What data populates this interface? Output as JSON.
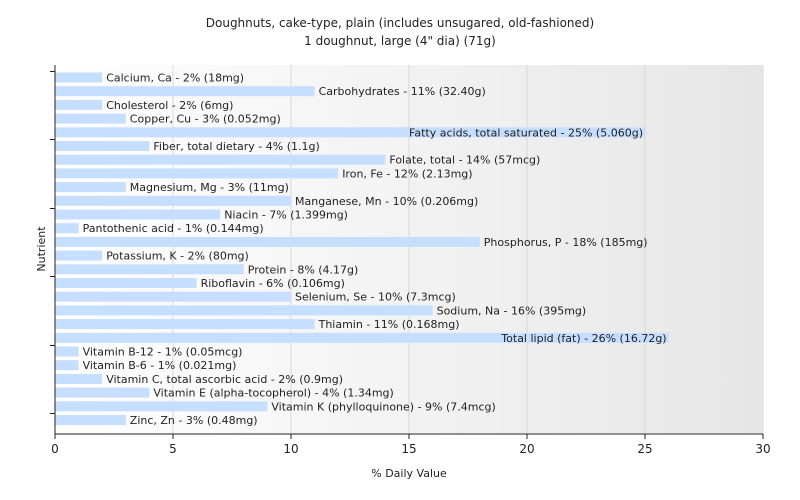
{
  "chart_data": {
    "type": "bar",
    "orientation": "horizontal",
    "title": "Doughnuts, cake-type, plain (includes unsugared, old-fashioned)",
    "subtitle": "1 doughnut, large (4\" dia) (71g)",
    "xlabel": "% Daily Value",
    "ylabel": "Nutrient",
    "xlim": [
      0,
      30
    ],
    "xticks": [
      0,
      5,
      10,
      15,
      20,
      25,
      30
    ],
    "grid": true,
    "bar_color": "#c6deff",
    "categories": [
      "Calcium, Ca",
      "Carbohydrates",
      "Cholesterol",
      "Copper, Cu",
      "Fatty acids, total saturated",
      "Fiber, total dietary",
      "Folate, total",
      "Iron, Fe",
      "Magnesium, Mg",
      "Manganese, Mn",
      "Niacin",
      "Pantothenic acid",
      "Phosphorus, P",
      "Potassium, K",
      "Protein",
      "Riboflavin",
      "Selenium, Se",
      "Sodium, Na",
      "Thiamin",
      "Total lipid (fat)",
      "Vitamin B-12",
      "Vitamin B-6",
      "Vitamin C, total ascorbic acid",
      "Vitamin E (alpha-tocopherol)",
      "Vitamin K (phylloquinone)",
      "Zinc, Zn"
    ],
    "values": [
      2,
      11,
      2,
      3,
      25,
      4,
      14,
      12,
      3,
      10,
      7,
      1,
      18,
      2,
      8,
      6,
      10,
      16,
      11,
      26,
      1,
      1,
      2,
      4,
      9,
      3
    ],
    "labels": [
      "Calcium, Ca - 2% (18mg)",
      "Carbohydrates - 11% (32.40g)",
      "Cholesterol - 2% (6mg)",
      "Copper, Cu - 3% (0.052mg)",
      "Fatty acids, total saturated - 25% (5.060g)",
      "Fiber, total dietary - 4% (1.1g)",
      "Folate, total - 14% (57mcg)",
      "Iron, Fe - 12% (2.13mg)",
      "Magnesium, Mg - 3% (11mg)",
      "Manganese, Mn - 10% (0.206mg)",
      "Niacin - 7% (1.399mg)",
      "Pantothenic acid - 1% (0.144mg)",
      "Phosphorus, P - 18% (185mg)",
      "Potassium, K - 2% (80mg)",
      "Protein - 8% (4.17g)",
      "Riboflavin - 6% (0.106mg)",
      "Selenium, Se - 10% (7.3mcg)",
      "Sodium, Na - 16% (395mg)",
      "Thiamin - 11% (0.168mg)",
      "Total lipid (fat) - 26% (16.72g)",
      "Vitamin B-12 - 1% (0.05mcg)",
      "Vitamin B-6 - 1% (0.021mg)",
      "Vitamin C, total ascorbic acid - 2% (0.9mg)",
      "Vitamin E (alpha-tocopherol) - 4% (1.34mg)",
      "Vitamin K (phylloquinone) - 9% (7.4mcg)",
      "Zinc, Zn - 3% (0.48mg)"
    ]
  }
}
